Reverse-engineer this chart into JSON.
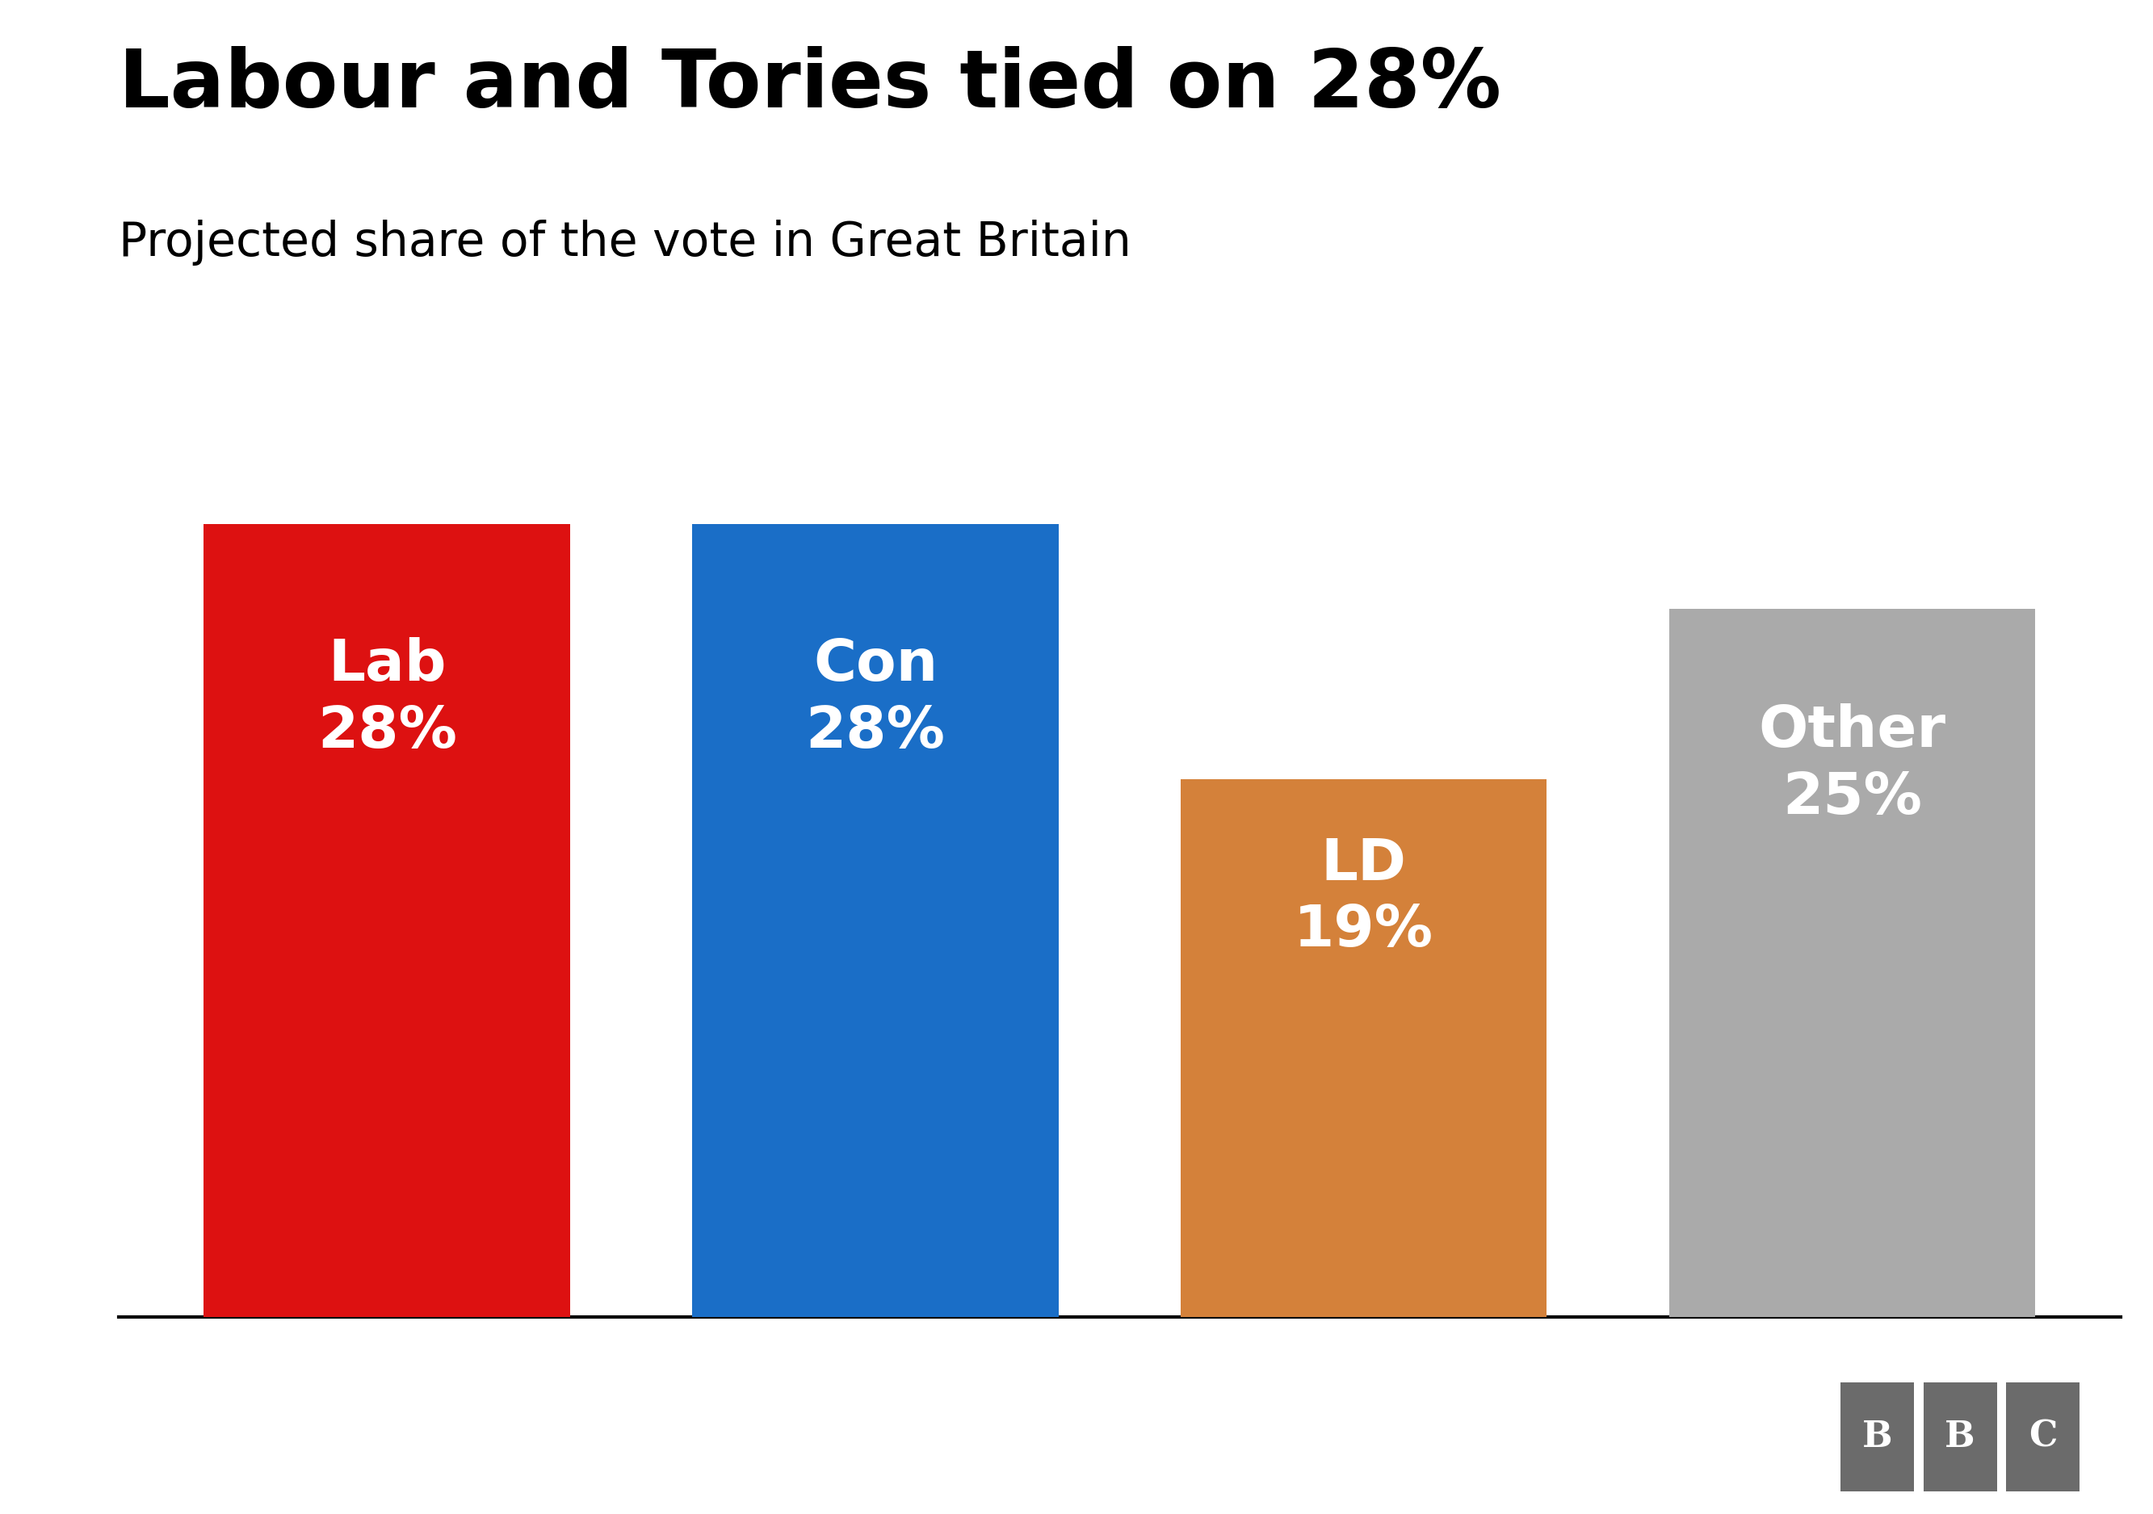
{
  "title": "Labour and Tories tied on 28%",
  "subtitle": "Projected share of the vote in Great Britain",
  "categories": [
    "Lab",
    "Con",
    "LD",
    "Other"
  ],
  "values": [
    28,
    28,
    19,
    25
  ],
  "bar_colors": [
    "#dd1111",
    "#1a6ec7",
    "#d4813a",
    "#aaaaaa"
  ],
  "label_line1": [
    "Lab",
    "Con",
    "LD",
    "Other"
  ],
  "label_line2": [
    "28%",
    "28%",
    "19%",
    "25%"
  ],
  "background_color": "#ffffff",
  "title_fontsize": 72,
  "subtitle_fontsize": 42,
  "bar_label_fontsize": 52,
  "ylim": [
    0,
    31
  ],
  "bbc_box_color": "#6b6b6b",
  "bbc_text_color": "#ffffff",
  "bar_width": 0.75
}
